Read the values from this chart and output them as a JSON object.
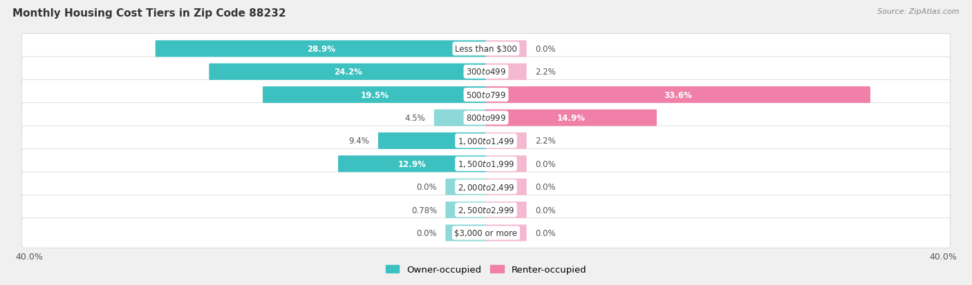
{
  "title": "Monthly Housing Cost Tiers in Zip Code 88232",
  "source": "Source: ZipAtlas.com",
  "categories": [
    "Less than $300",
    "$300 to $499",
    "$500 to $799",
    "$800 to $999",
    "$1,000 to $1,499",
    "$1,500 to $1,999",
    "$2,000 to $2,499",
    "$2,500 to $2,999",
    "$3,000 or more"
  ],
  "owner_values": [
    28.9,
    24.2,
    19.5,
    4.5,
    9.4,
    12.9,
    0.0,
    0.78,
    0.0
  ],
  "owner_labels": [
    "28.9%",
    "24.2%",
    "19.5%",
    "4.5%",
    "9.4%",
    "12.9%",
    "0.0%",
    "0.78%",
    "0.0%"
  ],
  "renter_values": [
    0.0,
    2.2,
    33.6,
    14.9,
    2.2,
    0.0,
    0.0,
    0.0,
    0.0
  ],
  "renter_labels": [
    "0.0%",
    "2.2%",
    "33.6%",
    "14.9%",
    "2.2%",
    "0.0%",
    "0.0%",
    "0.0%",
    "0.0%"
  ],
  "owner_color": "#3DC0C0",
  "owner_color_light": "#8DD8D8",
  "renter_color": "#F080A8",
  "renter_color_light": "#F4B8D0",
  "owner_label": "Owner-occupied",
  "renter_label": "Renter-occupied",
  "axis_max": 40.0,
  "background_color": "#f0f0f0",
  "row_bg_color": "#ffffff",
  "row_alt_color": "#e8e8e8",
  "title_fontsize": 11,
  "bar_height": 0.62,
  "stub_size": 3.5,
  "inside_threshold": 10.0,
  "label_fontsize": 8.5
}
